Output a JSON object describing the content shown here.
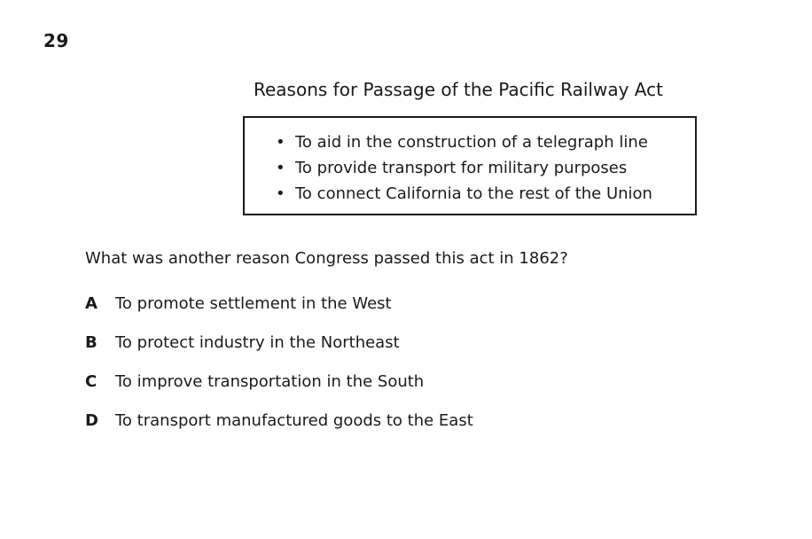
{
  "question_number": "29",
  "box": {
    "title": "Reasons for Passage of the Pacific Railway Act",
    "bullet_glyph": "•",
    "reasons": [
      "To aid in the construction of a telegraph line",
      "To provide transport for military purposes",
      "To connect California to the rest of the Union"
    ]
  },
  "question": "What was another reason Congress passed this act in 1862?",
  "choices": [
    {
      "letter": "A",
      "text": "To promote settlement in the West"
    },
    {
      "letter": "B",
      "text": "To protect industry in the Northeast"
    },
    {
      "letter": "C",
      "text": "To improve transportation in the South"
    },
    {
      "letter": "D",
      "text": "To transport manufactured goods to the East"
    }
  ]
}
